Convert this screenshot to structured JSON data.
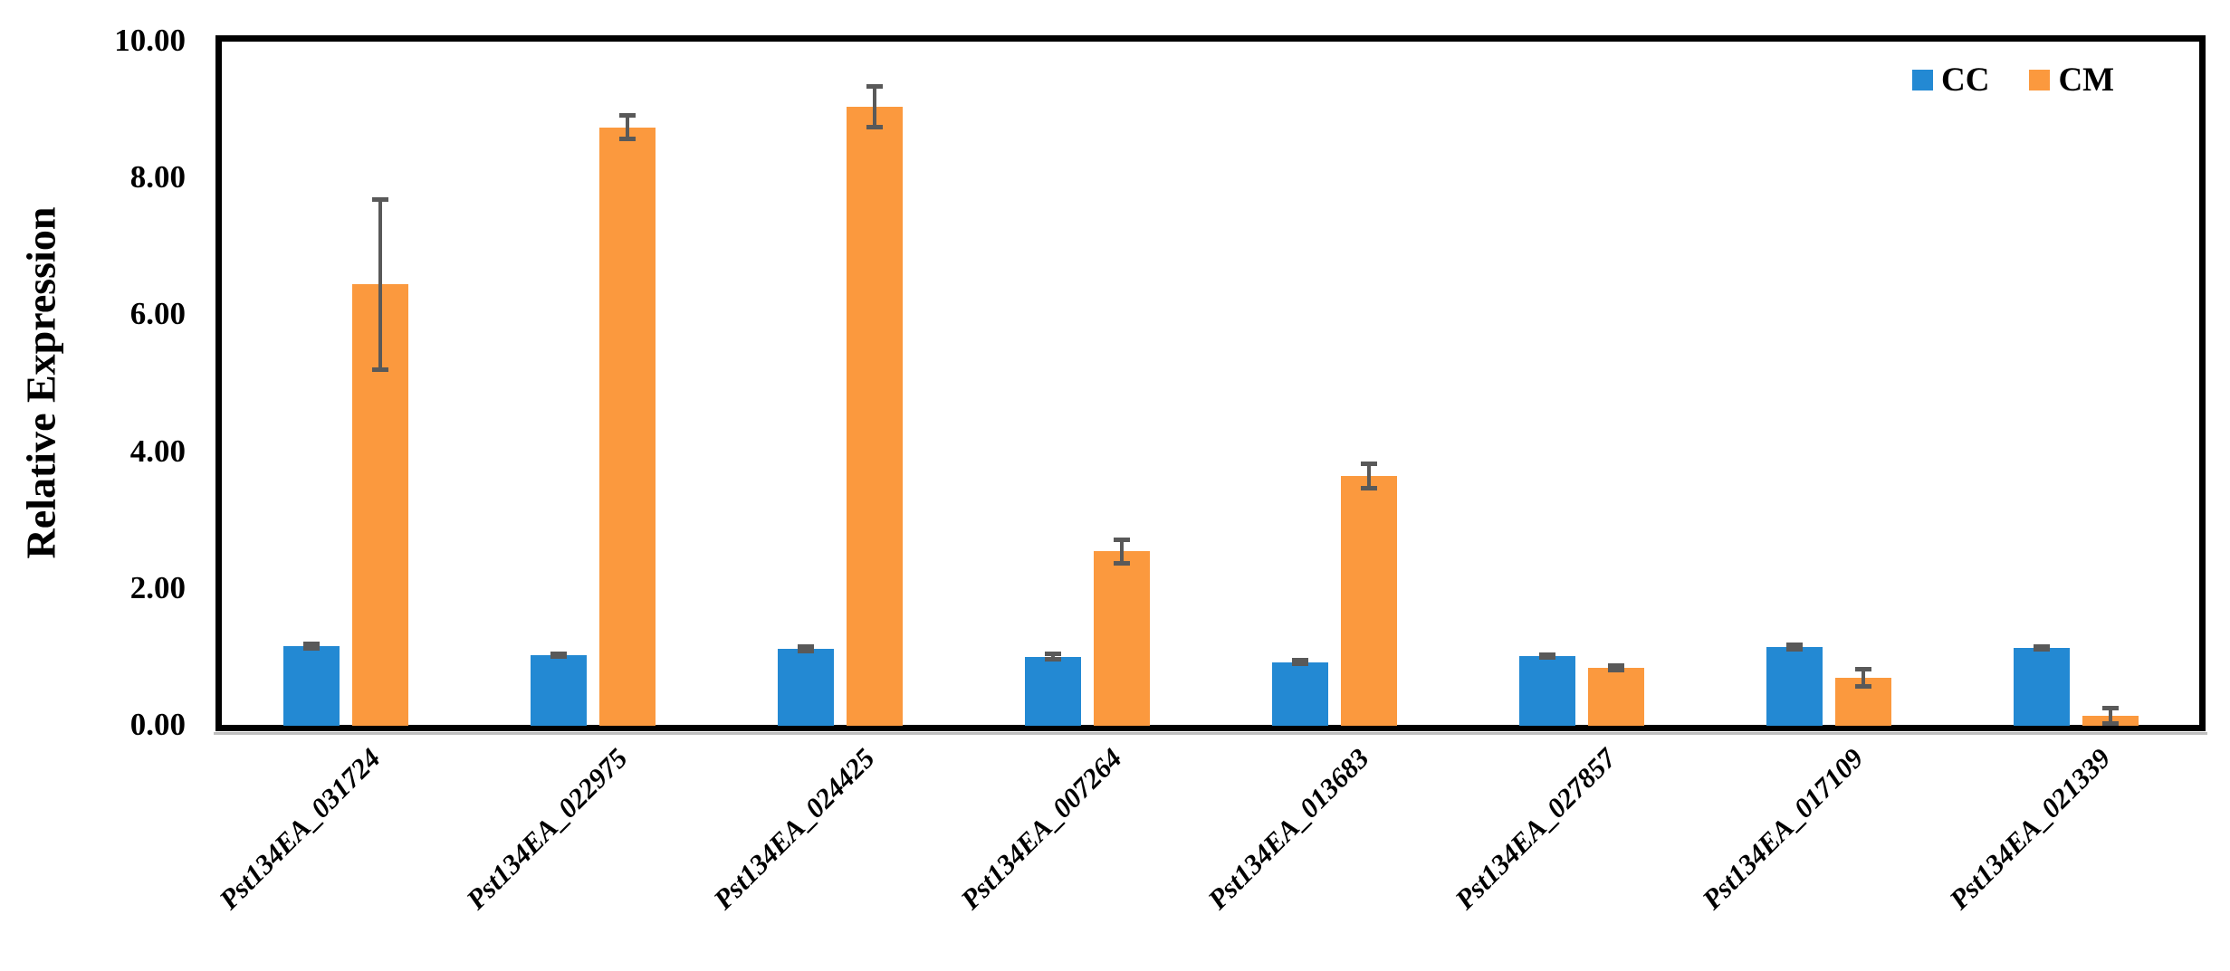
{
  "chart_data": {
    "type": "bar",
    "title": "",
    "xlabel": "",
    "ylabel": "Relative Expression",
    "ylim": [
      0,
      10
    ],
    "ytick_labels": [
      "0.00",
      "2.00",
      "4.00",
      "6.00",
      "8.00",
      "10.00"
    ],
    "grid": false,
    "legend_position": "top-right-inside",
    "categories": [
      "Pst134EA_031724",
      "Pst134EA_022975",
      "Pst134EA_024425",
      "Pst134EA_007264",
      "Pst134EA_013683",
      "Pst134EA_027857",
      "Pst134EA_017109",
      "Pst134EA_021339"
    ],
    "series": [
      {
        "name": "CC",
        "color": "#2389d3",
        "values": [
          1.17,
          1.03,
          1.12,
          1.01,
          0.93,
          1.02,
          1.15,
          1.14
        ],
        "errors": [
          0.04,
          0.03,
          0.04,
          0.05,
          0.03,
          0.03,
          0.04,
          0.03
        ]
      },
      {
        "name": "CM",
        "color": "#fb993e",
        "values": [
          6.45,
          8.75,
          9.05,
          2.55,
          3.65,
          0.85,
          0.7,
          0.15
        ],
        "errors": [
          1.25,
          0.18,
          0.3,
          0.18,
          0.18,
          0.04,
          0.13,
          0.12
        ]
      }
    ],
    "error_bar_color": "#595959"
  }
}
